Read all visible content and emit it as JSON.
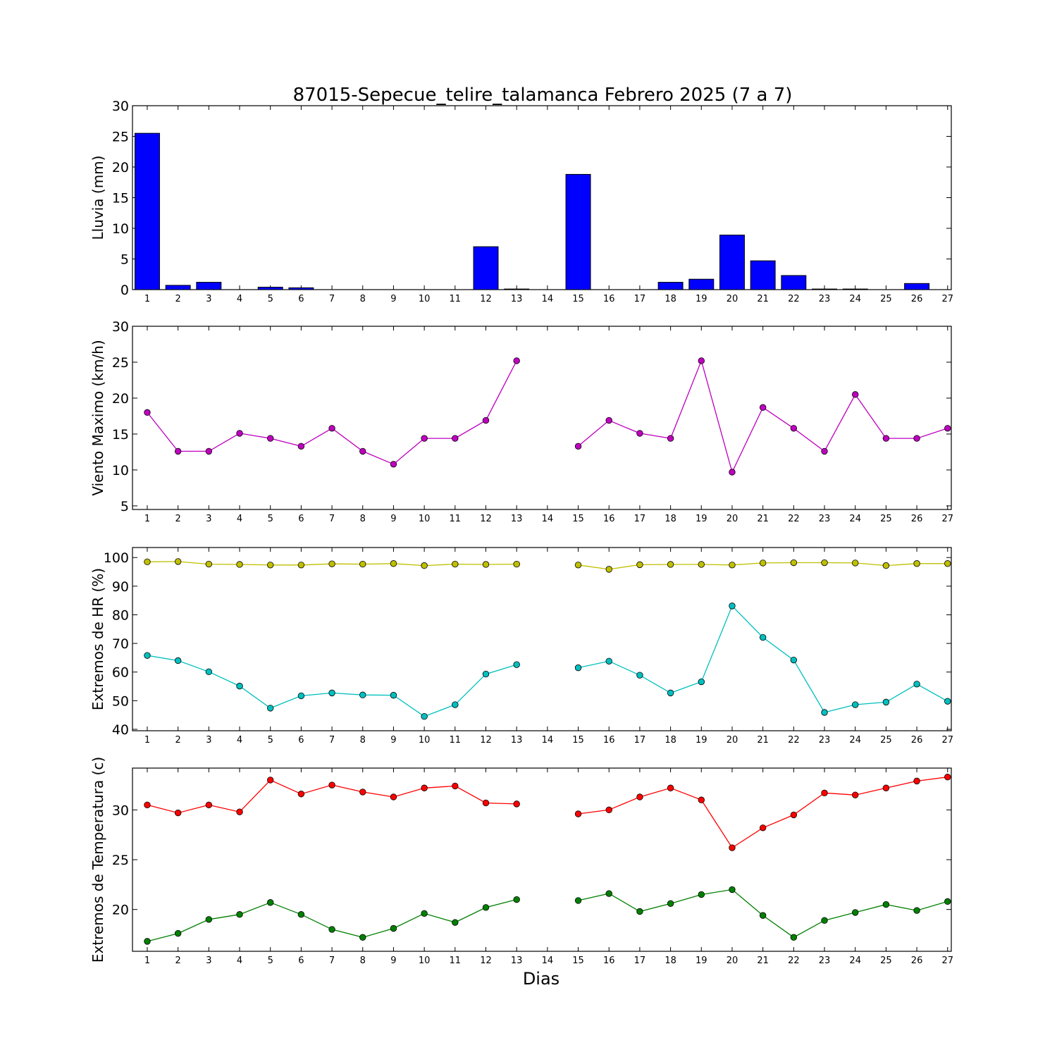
{
  "title": "87015-Sepecue_telire_talamanca Febrero 2025  (7 a 7)",
  "xlabel": "Dias",
  "chart_data": [
    {
      "type": "bar",
      "ylabel": "Lluvia (mm)",
      "ylim": [
        0,
        30
      ],
      "yticks": [
        0,
        5,
        10,
        15,
        20,
        25,
        30
      ],
      "x": [
        1,
        2,
        3,
        4,
        5,
        6,
        7,
        8,
        9,
        10,
        11,
        12,
        13,
        14,
        15,
        16,
        17,
        18,
        19,
        20,
        21,
        22,
        23,
        24,
        25,
        26,
        27
      ],
      "values": [
        25.5,
        0.7,
        1.2,
        0,
        0.4,
        0.3,
        0,
        0,
        0,
        0,
        0,
        7.0,
        0.1,
        0,
        18.8,
        0,
        0,
        1.2,
        1.7,
        8.9,
        4.7,
        2.3,
        0.1,
        0.1,
        0,
        1.0,
        0
      ],
      "color": "#0000ff"
    },
    {
      "type": "line",
      "ylabel": "Viento Maximo (km/h)",
      "ylim": [
        4.5,
        30
      ],
      "yticks": [
        5,
        10,
        15,
        20,
        25,
        30
      ],
      "x": [
        1,
        2,
        3,
        4,
        5,
        6,
        7,
        8,
        9,
        10,
        11,
        12,
        13,
        14,
        15,
        16,
        17,
        18,
        19,
        20,
        21,
        22,
        23,
        24,
        25,
        26,
        27
      ],
      "series": [
        {
          "color": "#bf00bf",
          "values": [
            18.0,
            12.6,
            12.6,
            15.1,
            14.4,
            13.3,
            15.8,
            12.6,
            10.8,
            14.4,
            14.4,
            16.9,
            25.2,
            null,
            13.3,
            16.9,
            15.1,
            14.4,
            25.2,
            9.7,
            18.7,
            15.8,
            12.6,
            20.5,
            14.4,
            14.4,
            15.8
          ]
        }
      ]
    },
    {
      "type": "line",
      "ylabel": "Extremos de HR (%)",
      "ylim": [
        39.5,
        103.5
      ],
      "yticks": [
        40,
        50,
        60,
        70,
        80,
        90,
        100
      ],
      "x": [
        1,
        2,
        3,
        4,
        5,
        6,
        7,
        8,
        9,
        10,
        11,
        12,
        13,
        14,
        15,
        16,
        17,
        18,
        19,
        20,
        21,
        22,
        23,
        24,
        25,
        26,
        27
      ],
      "series": [
        {
          "color": "#bfbf00",
          "values": [
            98.5,
            98.6,
            97.7,
            97.6,
            97.4,
            97.4,
            97.8,
            97.7,
            97.9,
            97.2,
            97.7,
            97.6,
            97.7,
            null,
            97.4,
            95.9,
            97.5,
            97.6,
            97.6,
            97.4,
            98.1,
            98.2,
            98.2,
            98.1,
            97.2,
            97.9,
            97.9
          ]
        },
        {
          "color": "#00bfbf",
          "values": [
            65.8,
            64.0,
            60.1,
            55.1,
            47.4,
            51.7,
            52.7,
            52.0,
            51.9,
            44.5,
            48.6,
            59.3,
            62.6,
            null,
            61.5,
            63.8,
            58.9,
            52.7,
            56.6,
            83.1,
            72.1,
            64.2,
            45.9,
            48.6,
            49.5,
            55.8,
            49.8
          ]
        }
      ]
    },
    {
      "type": "line",
      "ylabel": "Extremos de Temperatura (c)",
      "ylim": [
        15.8,
        34.2
      ],
      "yticks": [
        20,
        25,
        30
      ],
      "x": [
        1,
        2,
        3,
        4,
        5,
        6,
        7,
        8,
        9,
        10,
        11,
        12,
        13,
        14,
        15,
        16,
        17,
        18,
        19,
        20,
        21,
        22,
        23,
        24,
        25,
        26,
        27
      ],
      "series": [
        {
          "color": "#ff0000",
          "values": [
            30.5,
            29.7,
            30.5,
            29.8,
            33.0,
            31.6,
            32.5,
            31.8,
            31.3,
            32.2,
            32.4,
            30.7,
            30.6,
            null,
            29.6,
            30.0,
            31.3,
            32.2,
            31.0,
            26.2,
            28.2,
            29.5,
            31.7,
            31.5,
            32.2,
            32.9,
            33.3
          ]
        },
        {
          "color": "#008000",
          "values": [
            16.8,
            17.6,
            19.0,
            19.5,
            20.7,
            19.5,
            18.0,
            17.2,
            18.1,
            19.6,
            18.7,
            20.2,
            21.0,
            null,
            20.9,
            21.6,
            19.8,
            20.6,
            21.5,
            22.0,
            19.4,
            17.2,
            18.9,
            19.7,
            20.5,
            19.9,
            20.8
          ]
        }
      ]
    }
  ]
}
